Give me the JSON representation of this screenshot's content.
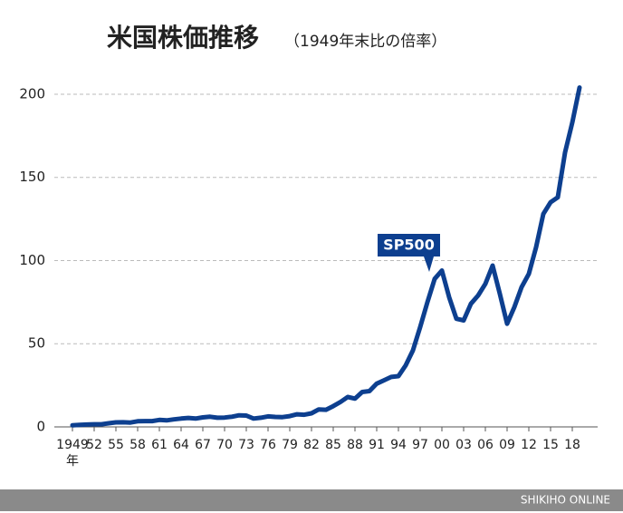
{
  "chart_data": {
    "type": "line",
    "title": "米国株価推移",
    "subtitle": "（1949年末比の倍率）",
    "x_unit": "年",
    "annotation": "SP500",
    "source": "SHIKIHO ONLINE",
    "x": [
      1949,
      1950,
      1951,
      1952,
      1953,
      1954,
      1955,
      1956,
      1957,
      1958,
      1959,
      1960,
      1961,
      1962,
      1963,
      1964,
      1965,
      1966,
      1967,
      1968,
      1969,
      1970,
      1971,
      1972,
      1973,
      1974,
      1975,
      1976,
      1977,
      1978,
      1979,
      1980,
      1981,
      1982,
      1983,
      1984,
      1985,
      1986,
      1987,
      1988,
      1989,
      1990,
      1991,
      1992,
      1993,
      1994,
      1995,
      1996,
      1997,
      1998,
      1999,
      2000,
      2001,
      2002,
      2003,
      2004,
      2005,
      2006,
      2007,
      2008,
      2009,
      2010,
      2011,
      2012,
      2013,
      2014,
      2015,
      2016,
      2017,
      2018,
      2019
    ],
    "series": [
      {
        "name": "SP500",
        "color": "#0d3f8f",
        "values": [
          1,
          1.2,
          1.4,
          1.6,
          1.6,
          2.2,
          2.7,
          2.8,
          2.6,
          3.4,
          3.5,
          3.5,
          4.2,
          3.9,
          4.5,
          5,
          5.4,
          5,
          5.7,
          6.1,
          5.5,
          5.6,
          6.1,
          7,
          6.8,
          5,
          5.5,
          6.3,
          6,
          5.9,
          6.5,
          7.6,
          7.3,
          8.2,
          10.5,
          10.3,
          12.5,
          15,
          18,
          17,
          21,
          21.5,
          26,
          28,
          30,
          30.5,
          37,
          46,
          60,
          75,
          89,
          94,
          78,
          65,
          64,
          74,
          79,
          86,
          97,
          80,
          62,
          72,
          84,
          92,
          108,
          128,
          135,
          138,
          165,
          183,
          204
        ]
      }
    ],
    "xlim": [
      1946.5,
      2021.5
    ],
    "xticks": [
      1949,
      {
        "value": 1952,
        "label": "52"
      },
      {
        "value": 1955,
        "label": "55"
      },
      {
        "value": 1958,
        "label": "58"
      },
      {
        "value": 1961,
        "label": "61"
      },
      {
        "value": 1964,
        "label": "64"
      },
      {
        "value": 1967,
        "label": "67"
      },
      {
        "value": 1970,
        "label": "70"
      },
      {
        "value": 1973,
        "label": "73"
      },
      {
        "value": 1976,
        "label": "76"
      },
      {
        "value": 1979,
        "label": "79"
      },
      {
        "value": 1982,
        "label": "82"
      },
      {
        "value": 1985,
        "label": "85"
      },
      {
        "value": 1988,
        "label": "88"
      },
      {
        "value": 1991,
        "label": "91"
      },
      {
        "value": 1994,
        "label": "94"
      },
      {
        "value": 1997,
        "label": "97"
      },
      {
        "value": 2000,
        "label": "00"
      },
      {
        "value": 2003,
        "label": "03"
      },
      {
        "value": 2006,
        "label": "06"
      },
      {
        "value": 2009,
        "label": "09"
      },
      {
        "value": 2012,
        "label": "12"
      },
      {
        "value": 2015,
        "label": "15"
      },
      {
        "value": 2018,
        "label": "18"
      }
    ],
    "ylim": [
      0,
      210
    ],
    "yticks": [
      0,
      50,
      100,
      150,
      200
    ],
    "grid": true
  }
}
